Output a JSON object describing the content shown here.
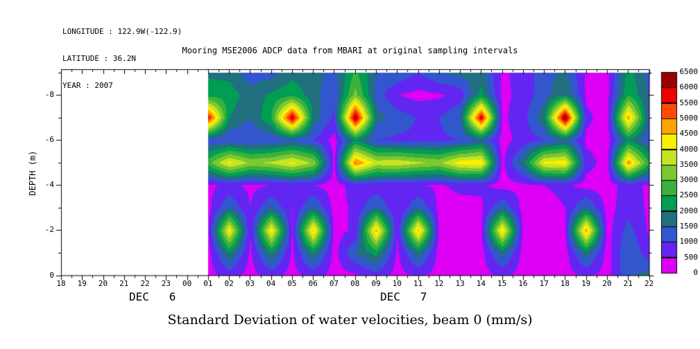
{
  "header": {
    "longitude": "LONGITUDE : 122.9W(-122.9)",
    "latitude": "LATITUDE : 36.2N",
    "year": "YEAR : 2007",
    "title": "Mooring MSE2006 ADCP data from MBARI at original sampling intervals"
  },
  "footer": {
    "caption": "Standard Deviation of water velocities, beam 0 (mm/s)"
  },
  "axes": {
    "y_label": "DEPTH (m)",
    "y_tick_labels": [
      "-8",
      "-6",
      "-4",
      "-2",
      "0"
    ],
    "y_tick_depths": [
      -8,
      -6,
      -4,
      -2,
      0
    ],
    "x_tick_labels": [
      "18",
      "19",
      "20",
      "21",
      "22",
      "23",
      "00",
      "01",
      "02",
      "03",
      "04",
      "05",
      "06",
      "07",
      "08",
      "09",
      "10",
      "11",
      "12",
      "13",
      "14",
      "15",
      "16",
      "17",
      "18",
      "19",
      "20",
      "21",
      "22"
    ],
    "x_date_left": "DEC   6",
    "x_date_right": "DEC   7"
  },
  "colorbar": {
    "labels": [
      "0",
      "500",
      "1000",
      "1500",
      "2000",
      "2500",
      "3000",
      "3500",
      "4000",
      "4500",
      "5000",
      "5500",
      "6000",
      "6500"
    ],
    "colors": [
      "#dd00f4",
      "#6326f2",
      "#3256cd",
      "#20707f",
      "#009e53",
      "#3cb13c",
      "#7cc831",
      "#c5e421",
      "#fbf000",
      "#ffa400",
      "#fb4c06",
      "#ee0000",
      "#9b0000"
    ]
  },
  "chart_data": {
    "type": "heatmap",
    "title": "Mooring MSE2006 ADCP data from MBARI at original sampling intervals",
    "xlabel": "",
    "ylabel": "DEPTH (m)",
    "units": "mm/s",
    "x_axis_hours_span": [
      0,
      28
    ],
    "x_axis_start": "DEC 6 18:00",
    "x_axis_end": "DEC 7 22:00",
    "data_start_hour_offset": 7,
    "column_hours_dec7": [
      "01",
      "02",
      "03",
      "04",
      "05",
      "06",
      "07",
      "08",
      "09",
      "10",
      "11",
      "12",
      "13",
      "14",
      "15",
      "16",
      "17",
      "18",
      "19",
      "20",
      "21",
      "22"
    ],
    "depths": [
      -9,
      -8,
      -7,
      -6,
      -5,
      -4,
      -3,
      -2,
      -1,
      0
    ],
    "vmin": 0,
    "vmax": 6500,
    "level_step": 500,
    "values": [
      [
        1900,
        1800,
        1200,
        1300,
        1800,
        1700,
        1300,
        2600,
        1500,
        1400,
        1000,
        1500,
        1650,
        1700,
        400,
        700,
        1300,
        1600,
        400,
        350,
        2200,
        1300
      ],
      [
        2300,
        2300,
        1700,
        2100,
        2400,
        1700,
        1100,
        3200,
        1300,
        500,
        330,
        420,
        700,
        2200,
        350,
        700,
        1300,
        2000,
        400,
        350,
        2500,
        1400
      ],
      [
        5800,
        2000,
        1500,
        2500,
        6100,
        1800,
        900,
        6300,
        1700,
        1300,
        950,
        1000,
        1500,
        6000,
        400,
        800,
        1900,
        6500,
        600,
        300,
        4800,
        1300
      ],
      [
        1100,
        1100,
        1000,
        1100,
        1300,
        1000,
        300,
        2000,
        1000,
        900,
        900,
        900,
        1000,
        1500,
        300,
        700,
        1000,
        1500,
        400,
        300,
        2000,
        1100
      ],
      [
        2800,
        4200,
        3400,
        3600,
        4150,
        3400,
        350,
        5100,
        3800,
        3900,
        3600,
        3400,
        4300,
        4400,
        350,
        1800,
        4200,
        4300,
        700,
        300,
        4900,
        2500
      ],
      [
        400,
        600,
        400,
        500,
        600,
        500,
        300,
        700,
        600,
        500,
        500,
        450,
        600,
        600,
        300,
        400,
        500,
        600,
        300,
        300,
        700,
        400
      ],
      [
        350,
        1500,
        500,
        1500,
        500,
        1600,
        300,
        600,
        1600,
        500,
        1500,
        350,
        350,
        400,
        1500,
        300,
        350,
        500,
        1600,
        300,
        800,
        400
      ],
      [
        400,
        4300,
        500,
        4400,
        400,
        4600,
        300,
        600,
        4700,
        500,
        4700,
        300,
        300,
        400,
        4500,
        300,
        300,
        500,
        4800,
        300,
        1200,
        400
      ],
      [
        300,
        2000,
        400,
        2000,
        400,
        2000,
        300,
        1500,
        2200,
        400,
        1800,
        300,
        300,
        300,
        1700,
        300,
        300,
        300,
        1800,
        300,
        1500,
        700
      ],
      [
        300,
        700,
        300,
        700,
        300,
        700,
        300,
        400,
        800,
        300,
        600,
        300,
        300,
        300,
        600,
        300,
        300,
        300,
        600,
        300,
        1400,
        1700
      ]
    ]
  }
}
